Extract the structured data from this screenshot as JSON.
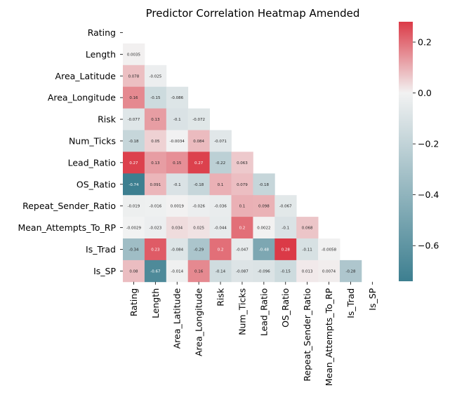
{
  "chart_data": {
    "type": "heatmap",
    "title": "Predictor Correlation Heatmap Amended",
    "variables": [
      "Rating",
      "Length",
      "Area_Latitude",
      "Area_Longitude",
      "Risk",
      "Num_Ticks",
      "Lead_Ratio",
      "OS_Ratio",
      "Repeat_Sender_Ratio",
      "Mean_Attempts_To_RP",
      "Is_Trad",
      "Is_SP"
    ],
    "mask": "upper-triangle-including-diagonal",
    "lower_triangle_labels": [
      [],
      [
        "0.0035"
      ],
      [
        "0.078",
        "-0.025"
      ],
      [
        "0.16",
        "-0.15",
        "-0.086"
      ],
      [
        "-0.077",
        "0.13",
        "-0.1",
        "-0.072"
      ],
      [
        "-0.18",
        "0.05",
        "-0.0034",
        "0.084",
        "-0.071"
      ],
      [
        "0.27",
        "0.13",
        "0.15",
        "0.27",
        "-0.22",
        "0.063"
      ],
      [
        "-0.74",
        "0.091",
        "-0.1",
        "-0.18",
        "0.1",
        "0.079",
        "-0.18"
      ],
      [
        "-0.019",
        "-0.016",
        "0.0019",
        "-0.026",
        "-0.036",
        "0.1",
        "0.098",
        "-0.067"
      ],
      [
        "-0.0029",
        "-0.023",
        "0.034",
        "0.025",
        "-0.044",
        "0.2",
        "0.0022",
        "-0.1",
        "0.068"
      ],
      [
        "-0.34",
        "0.23",
        "-0.084",
        "-0.29",
        "0.2",
        "-0.047",
        "-0.48",
        "0.28",
        "-0.11",
        "-0.0058"
      ],
      [
        "0.08",
        "-0.67",
        "-0.014",
        "0.16",
        "-0.14",
        "-0.087",
        "-0.096",
        "-0.15",
        "0.013",
        "0.0074",
        "-0.28"
      ]
    ],
    "colorbar": {
      "min": -0.74,
      "max": 0.28,
      "ticks": [
        "0.2",
        "0.0",
        "−0.2",
        "−0.4",
        "−0.6"
      ],
      "tick_values": [
        0.2,
        0.0,
        -0.2,
        -0.4,
        -0.6
      ]
    },
    "colors": {
      "negative": "#3d7f90",
      "center": "#f2f2f2",
      "positive": "#db3a47"
    }
  }
}
